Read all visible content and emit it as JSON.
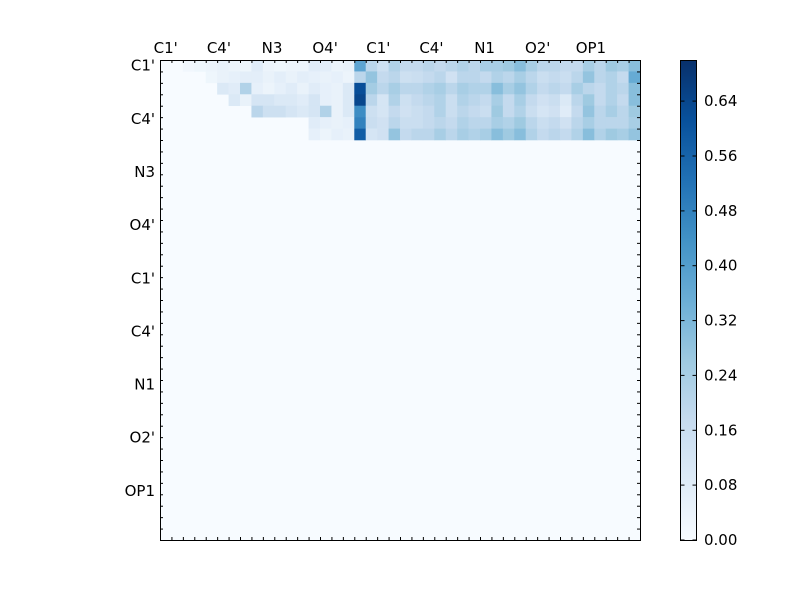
{
  "chart_data": {
    "type": "heatmap",
    "title": "",
    "xlabel": "",
    "ylabel": "",
    "n": 42,
    "x_tick_labels": [
      "C1'",
      "C4'",
      "N3",
      "O4'",
      "C1'",
      "C4'",
      "N1",
      "O2'",
      "OP1"
    ],
    "y_tick_labels": [
      "C1'",
      "C4'",
      "N3",
      "O4'",
      "C1'",
      "C4'",
      "N1",
      "O2'",
      "OP1"
    ],
    "colorbar": {
      "colormap": "Blues",
      "vmin": 0.0,
      "vmax": 0.7,
      "tick_labels": [
        "0.00",
        "0.08",
        "0.16",
        "0.24",
        "0.32",
        "0.40",
        "0.48",
        "0.56",
        "0.64"
      ],
      "tick_values": [
        0.0,
        0.08,
        0.16,
        0.24,
        0.32,
        0.4,
        0.48,
        0.56,
        0.64
      ]
    },
    "matrix_note": "upper-triangular contact matrix; rows 0-6 and cols 0-41",
    "values": [
      [
        0,
        0,
        0.02,
        0.03,
        0.04,
        0.05,
        0.04,
        0.03,
        0.08,
        0.04,
        0.03,
        0.04,
        0.04,
        0.08,
        0.07,
        0.04,
        0.05,
        0.38,
        0.2,
        0.15,
        0.22,
        0.18,
        0.18,
        0.2,
        0.18,
        0.2,
        0.22,
        0.2,
        0.24,
        0.24,
        0.26,
        0.3,
        0.24,
        0.2,
        0.2,
        0.18,
        0.18,
        0.24,
        0.2,
        0.26,
        0.24,
        0.3
      ],
      [
        0,
        0,
        0,
        0,
        0.03,
        0.05,
        0.06,
        0.07,
        0.07,
        0.05,
        0.07,
        0.05,
        0.07,
        0.06,
        0.05,
        0.06,
        0.04,
        0.2,
        0.28,
        0.18,
        0.2,
        0.15,
        0.16,
        0.18,
        0.2,
        0.14,
        0.2,
        0.2,
        0.18,
        0.22,
        0.2,
        0.24,
        0.2,
        0.16,
        0.18,
        0.16,
        0.2,
        0.28,
        0.2,
        0.22,
        0.18,
        0.36
      ],
      [
        0,
        0,
        0,
        0,
        0,
        0.1,
        0.08,
        0.22,
        0.06,
        0.04,
        0.06,
        0.08,
        0.05,
        0.08,
        0.06,
        0.05,
        0.1,
        0.62,
        0.25,
        0.2,
        0.24,
        0.2,
        0.2,
        0.22,
        0.24,
        0.2,
        0.24,
        0.22,
        0.22,
        0.3,
        0.24,
        0.28,
        0.22,
        0.18,
        0.2,
        0.18,
        0.24,
        0.2,
        0.18,
        0.22,
        0.2,
        0.3
      ],
      [
        0,
        0,
        0,
        0,
        0,
        0,
        0.1,
        0.05,
        0.12,
        0.12,
        0.1,
        0.1,
        0.08,
        0.12,
        0.06,
        0.05,
        0.1,
        0.64,
        0.2,
        0.12,
        0.22,
        0.15,
        0.18,
        0.2,
        0.22,
        0.16,
        0.22,
        0.2,
        0.18,
        0.24,
        0.18,
        0.24,
        0.18,
        0.14,
        0.16,
        0.1,
        0.2,
        0.26,
        0.18,
        0.22,
        0.18,
        0.3
      ],
      [
        0,
        0,
        0,
        0,
        0,
        0,
        0,
        0,
        0.2,
        0.15,
        0.15,
        0.12,
        0.1,
        0.12,
        0.22,
        0.05,
        0.1,
        0.45,
        0.15,
        0.12,
        0.18,
        0.14,
        0.16,
        0.18,
        0.22,
        0.16,
        0.2,
        0.18,
        0.16,
        0.26,
        0.18,
        0.22,
        0.16,
        0.12,
        0.14,
        0.08,
        0.18,
        0.28,
        0.2,
        0.24,
        0.2,
        0.26
      ],
      [
        0,
        0,
        0,
        0,
        0,
        0,
        0,
        0,
        0,
        0,
        0,
        0,
        0,
        0.08,
        0.06,
        0.05,
        0.06,
        0.48,
        0.16,
        0.14,
        0.2,
        0.16,
        0.16,
        0.18,
        0.2,
        0.18,
        0.22,
        0.2,
        0.2,
        0.24,
        0.22,
        0.26,
        0.2,
        0.16,
        0.18,
        0.14,
        0.2,
        0.24,
        0.2,
        0.2,
        0.2,
        0.24
      ],
      [
        0,
        0,
        0,
        0,
        0,
        0,
        0,
        0,
        0,
        0,
        0,
        0,
        0,
        0.06,
        0.04,
        0.06,
        0.05,
        0.58,
        0.12,
        0.14,
        0.28,
        0.18,
        0.2,
        0.2,
        0.24,
        0.2,
        0.24,
        0.22,
        0.24,
        0.3,
        0.26,
        0.3,
        0.22,
        0.18,
        0.2,
        0.18,
        0.22,
        0.3,
        0.22,
        0.26,
        0.24,
        0.28
      ]
    ]
  }
}
